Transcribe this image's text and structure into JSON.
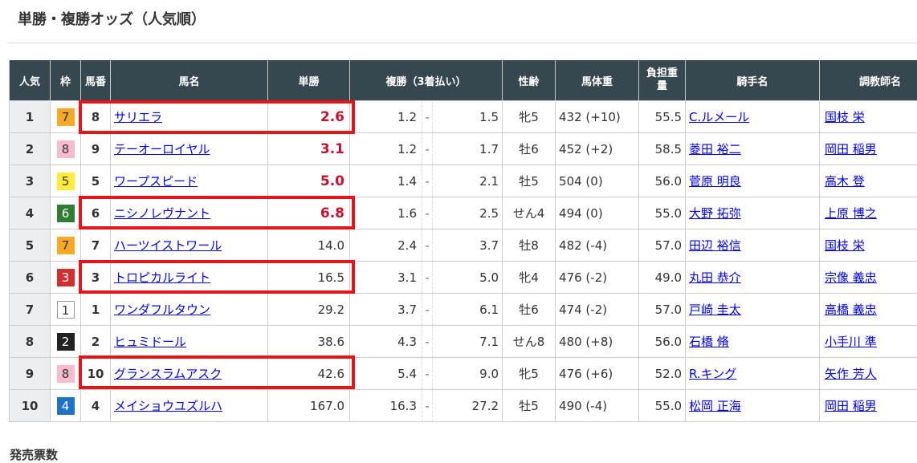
{
  "title": "単勝・複勝オッズ（人気順）",
  "headers": {
    "pop": "人気",
    "waku": "枠",
    "num": "馬番",
    "name": "馬名",
    "win": "単勝",
    "place": "複勝（3着払い）",
    "sexage": "性齢",
    "weight": "馬体重",
    "load": "負担重量",
    "jockey": "騎手名",
    "trainer": "調教師名"
  },
  "waku_colors": {
    "1": "#ffffff",
    "2": "#222222",
    "3": "#d32f2f",
    "4": "#1e73c8",
    "5": "#ffeb3b",
    "6": "#2e7d32",
    "7": "#f9a825",
    "8": "#f8bbd0"
  },
  "highlight_color": "#e8141c",
  "rows": [
    {
      "pop": "1",
      "waku": "7",
      "num": "8",
      "name": "サリエラ",
      "win": "2.6",
      "plo": "1.2",
      "phi": "1.5",
      "sexage": "牝5",
      "weight": "432 (+10)",
      "load": "55.5",
      "jockey": "C.ルメール",
      "trainer": "国枝 栄",
      "highlighted": true
    },
    {
      "pop": "2",
      "waku": "8",
      "num": "9",
      "name": "テーオーロイヤル",
      "win": "3.1",
      "plo": "1.2",
      "phi": "1.7",
      "sexage": "牡6",
      "weight": "452 (+2)",
      "load": "58.5",
      "jockey": "菱田 裕二",
      "trainer": "岡田 稲男",
      "highlighted": false
    },
    {
      "pop": "3",
      "waku": "5",
      "num": "5",
      "name": "ワープスピード",
      "win": "5.0",
      "plo": "1.4",
      "phi": "2.1",
      "sexage": "牡5",
      "weight": "504 (0)",
      "load": "56.0",
      "jockey": "菅原 明良",
      "trainer": "高木 登",
      "highlighted": false
    },
    {
      "pop": "4",
      "waku": "6",
      "num": "6",
      "name": "ニシノレヴナント",
      "win": "6.8",
      "plo": "1.6",
      "phi": "2.5",
      "sexage": "せん4",
      "weight": "494 (0)",
      "load": "55.0",
      "jockey": "大野 拓弥",
      "trainer": "上原 博之",
      "highlighted": true
    },
    {
      "pop": "5",
      "waku": "7",
      "num": "7",
      "name": "ハーツイストワール",
      "win": "14.0",
      "plo": "2.4",
      "phi": "3.7",
      "sexage": "牡8",
      "weight": "482 (-4)",
      "load": "57.0",
      "jockey": "田辺 裕信",
      "trainer": "国枝 栄",
      "highlighted": false
    },
    {
      "pop": "6",
      "waku": "3",
      "num": "3",
      "name": "トロピカルライト",
      "win": "16.5",
      "plo": "3.1",
      "phi": "5.0",
      "sexage": "牝4",
      "weight": "476 (-2)",
      "load": "49.0",
      "jockey": "丸田 恭介",
      "trainer": "宗像 義忠",
      "highlighted": true
    },
    {
      "pop": "7",
      "waku": "1",
      "num": "1",
      "name": "ワンダフルタウン",
      "win": "29.2",
      "plo": "3.7",
      "phi": "6.1",
      "sexage": "牡6",
      "weight": "474 (-2)",
      "load": "57.0",
      "jockey": "戸崎 圭太",
      "trainer": "高橋 義忠",
      "highlighted": false
    },
    {
      "pop": "8",
      "waku": "2",
      "num": "2",
      "name": "ヒュミドール",
      "win": "38.6",
      "plo": "4.3",
      "phi": "7.1",
      "sexage": "せん8",
      "weight": "480 (+8)",
      "load": "56.0",
      "jockey": "石橋 脩",
      "trainer": "小手川 準",
      "highlighted": false
    },
    {
      "pop": "9",
      "waku": "8",
      "num": "10",
      "name": "グランスラムアスク",
      "win": "42.6",
      "plo": "5.4",
      "phi": "9.0",
      "sexage": "牝5",
      "weight": "476 (+6)",
      "load": "52.0",
      "jockey": "R.キング",
      "trainer": "矢作 芳人",
      "highlighted": true
    },
    {
      "pop": "10",
      "waku": "4",
      "num": "4",
      "name": "メイショウユズルハ",
      "win": "167.0",
      "plo": "16.3",
      "phi": "27.2",
      "sexage": "牡5",
      "weight": "490 (-4)",
      "load": "55.0",
      "jockey": "松岡 正海",
      "trainer": "岡田 稲男",
      "highlighted": false
    }
  ],
  "footer_heading": "発売票数"
}
